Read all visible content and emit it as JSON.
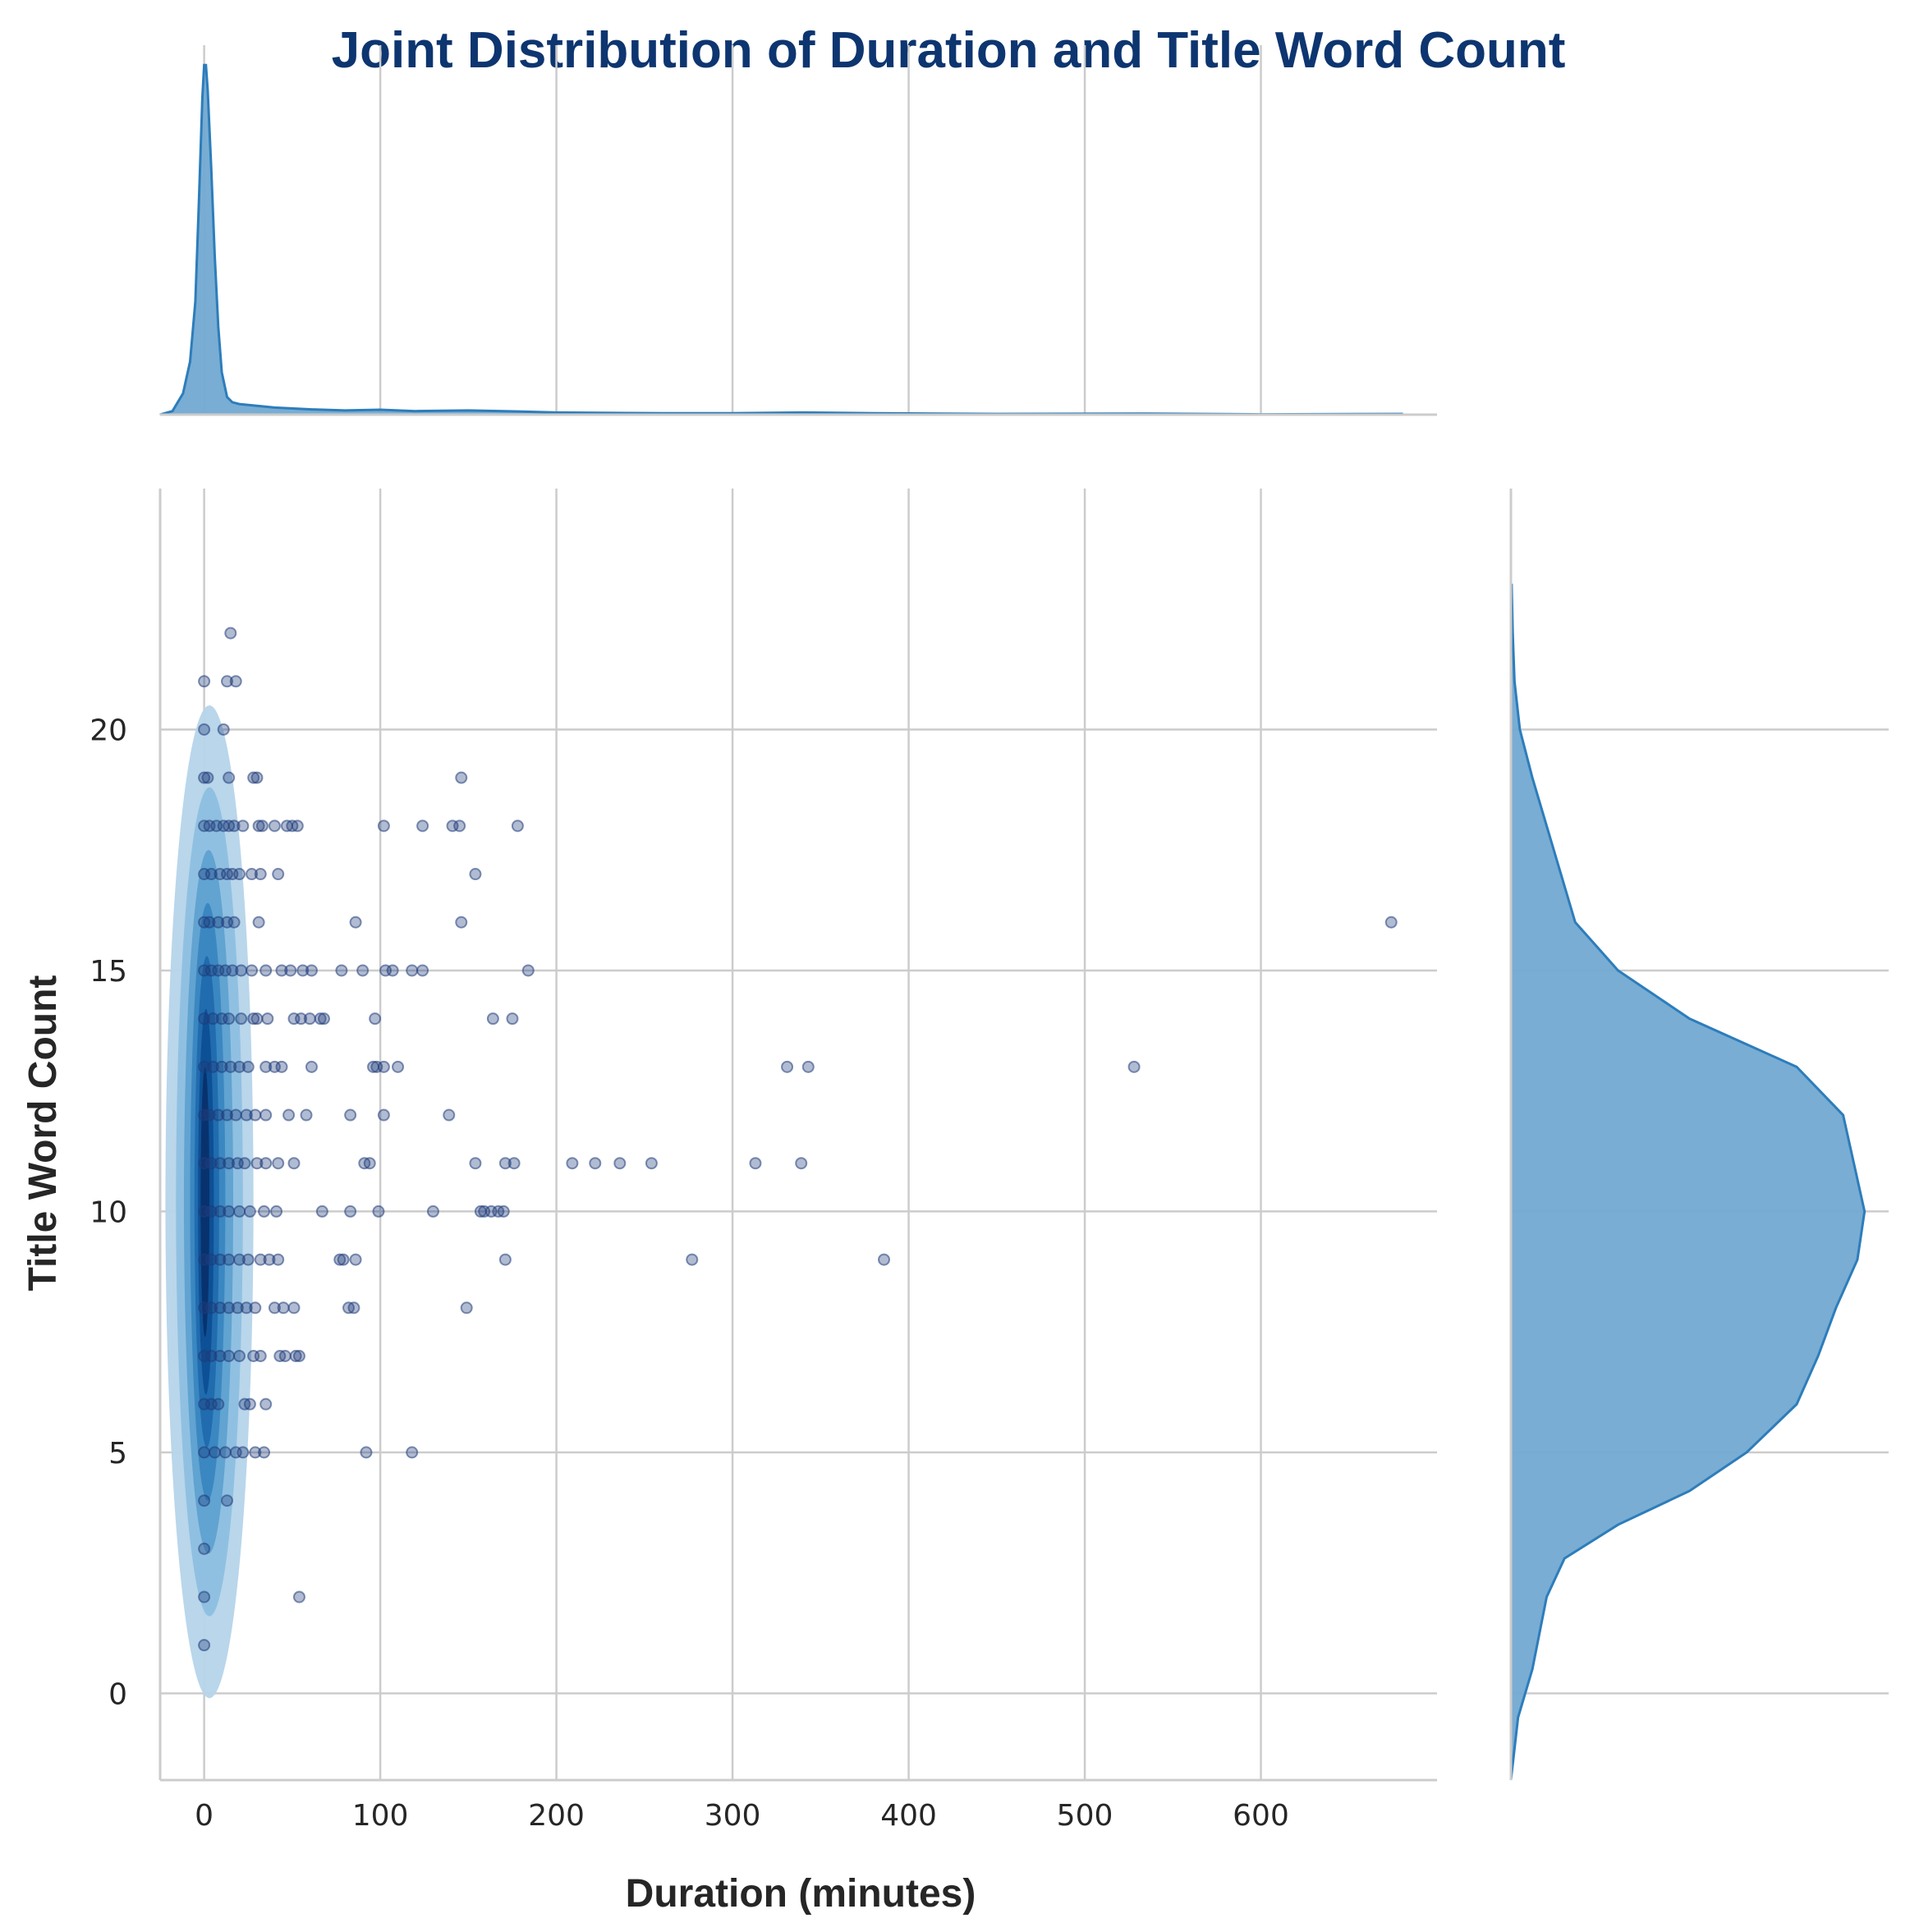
{
  "chart_data": {
    "type": "jointplot",
    "title": "Joint Distribution of Duration and Title Word Count",
    "xlabel": "Duration (minutes)",
    "ylabel": "Title Word Count",
    "xlim": [
      -25,
      700
    ],
    "ylim": [
      -1.8,
      25
    ],
    "xticks": [
      0,
      100,
      200,
      300,
      400,
      500,
      600
    ],
    "yticks": [
      0,
      5,
      10,
      15,
      20
    ],
    "grid": true,
    "colors": {
      "title": "#0d3570",
      "marginal_fill": "#72a9d1",
      "marginal_line": "#2d7dbb",
      "points": "#1f3d7a",
      "kde_levels": [
        "#b5d4ea",
        "#8dbfe0",
        "#5fa1d0",
        "#3986c0",
        "#1f6aad",
        "#0d4f93",
        "#08306b"
      ]
    },
    "scatter_points": [
      [
        15,
        22
      ],
      [
        0,
        21
      ],
      [
        13,
        21
      ],
      [
        18,
        21
      ],
      [
        0,
        20
      ],
      [
        11,
        20
      ],
      [
        0,
        19
      ],
      [
        2,
        19
      ],
      [
        14,
        19
      ],
      [
        28,
        19
      ],
      [
        30,
        19
      ],
      [
        146,
        19
      ],
      [
        0,
        18
      ],
      [
        3,
        18
      ],
      [
        7,
        18
      ],
      [
        11,
        18
      ],
      [
        14,
        18
      ],
      [
        17,
        18
      ],
      [
        22,
        18
      ],
      [
        31,
        18
      ],
      [
        33,
        18
      ],
      [
        40,
        18
      ],
      [
        47,
        18
      ],
      [
        50,
        18
      ],
      [
        53,
        18
      ],
      [
        102,
        18
      ],
      [
        124,
        18
      ],
      [
        141,
        18
      ],
      [
        145,
        18
      ],
      [
        178,
        18
      ],
      [
        0,
        17
      ],
      [
        4,
        17
      ],
      [
        9,
        17
      ],
      [
        13,
        17
      ],
      [
        16,
        17
      ],
      [
        20,
        17
      ],
      [
        27,
        17
      ],
      [
        32,
        17
      ],
      [
        42,
        17
      ],
      [
        154,
        17
      ],
      [
        0,
        16
      ],
      [
        3,
        16
      ],
      [
        8,
        16
      ],
      [
        13,
        16
      ],
      [
        17,
        16
      ],
      [
        31,
        16
      ],
      [
        86,
        16
      ],
      [
        146,
        16
      ],
      [
        674,
        16
      ],
      [
        0,
        15
      ],
      [
        4,
        15
      ],
      [
        8,
        15
      ],
      [
        12,
        15
      ],
      [
        16,
        15
      ],
      [
        21,
        15
      ],
      [
        27,
        15
      ],
      [
        35,
        15
      ],
      [
        44,
        15
      ],
      [
        49,
        15
      ],
      [
        56,
        15
      ],
      [
        61,
        15
      ],
      [
        78,
        15
      ],
      [
        90,
        15
      ],
      [
        103,
        15
      ],
      [
        107,
        15
      ],
      [
        118,
        15
      ],
      [
        124,
        15
      ],
      [
        184,
        15
      ],
      [
        0,
        14
      ],
      [
        5,
        14
      ],
      [
        10,
        14
      ],
      [
        14,
        14
      ],
      [
        21,
        14
      ],
      [
        28,
        14
      ],
      [
        30,
        14
      ],
      [
        36,
        14
      ],
      [
        51,
        14
      ],
      [
        55,
        14
      ],
      [
        60,
        14
      ],
      [
        66,
        14
      ],
      [
        68,
        14
      ],
      [
        97,
        14
      ],
      [
        164,
        14
      ],
      [
        175,
        14
      ],
      [
        0,
        13
      ],
      [
        5,
        13
      ],
      [
        10,
        13
      ],
      [
        15,
        13
      ],
      [
        20,
        13
      ],
      [
        25,
        13
      ],
      [
        35,
        13
      ],
      [
        40,
        13
      ],
      [
        44,
        13
      ],
      [
        61,
        13
      ],
      [
        96,
        13
      ],
      [
        98,
        13
      ],
      [
        102,
        13
      ],
      [
        110,
        13
      ],
      [
        331,
        13
      ],
      [
        343,
        13
      ],
      [
        528,
        13
      ],
      [
        0,
        12
      ],
      [
        3,
        12
      ],
      [
        8,
        12
      ],
      [
        13,
        12
      ],
      [
        18,
        12
      ],
      [
        24,
        12
      ],
      [
        29,
        12
      ],
      [
        35,
        12
      ],
      [
        48,
        12
      ],
      [
        58,
        12
      ],
      [
        83,
        12
      ],
      [
        102,
        12
      ],
      [
        139,
        12
      ],
      [
        0,
        11
      ],
      [
        4,
        11
      ],
      [
        9,
        11
      ],
      [
        14,
        11
      ],
      [
        19,
        11
      ],
      [
        23,
        11
      ],
      [
        30,
        11
      ],
      [
        35,
        11
      ],
      [
        42,
        11
      ],
      [
        51,
        11
      ],
      [
        91,
        11
      ],
      [
        94,
        11
      ],
      [
        154,
        11
      ],
      [
        171,
        11
      ],
      [
        176,
        11
      ],
      [
        209,
        11
      ],
      [
        222,
        11
      ],
      [
        236,
        11
      ],
      [
        254,
        11
      ],
      [
        313,
        11
      ],
      [
        339,
        11
      ],
      [
        0,
        10
      ],
      [
        4,
        10
      ],
      [
        9,
        10
      ],
      [
        14,
        10
      ],
      [
        20,
        10
      ],
      [
        26,
        10
      ],
      [
        34,
        10
      ],
      [
        41,
        10
      ],
      [
        67,
        10
      ],
      [
        83,
        10
      ],
      [
        99,
        10
      ],
      [
        130,
        10
      ],
      [
        157,
        10
      ],
      [
        159,
        10
      ],
      [
        163,
        10
      ],
      [
        167,
        10
      ],
      [
        170,
        10
      ],
      [
        0,
        9
      ],
      [
        4,
        9
      ],
      [
        9,
        9
      ],
      [
        14,
        9
      ],
      [
        20,
        9
      ],
      [
        25,
        9
      ],
      [
        32,
        9
      ],
      [
        37,
        9
      ],
      [
        42,
        9
      ],
      [
        77,
        9
      ],
      [
        79,
        9
      ],
      [
        86,
        9
      ],
      [
        171,
        9
      ],
      [
        277,
        9
      ],
      [
        386,
        9
      ],
      [
        0,
        8
      ],
      [
        4,
        8
      ],
      [
        9,
        8
      ],
      [
        14,
        8
      ],
      [
        19,
        8
      ],
      [
        24,
        8
      ],
      [
        29,
        8
      ],
      [
        40,
        8
      ],
      [
        45,
        8
      ],
      [
        51,
        8
      ],
      [
        82,
        8
      ],
      [
        85,
        8
      ],
      [
        149,
        8
      ],
      [
        0,
        7
      ],
      [
        4,
        7
      ],
      [
        9,
        7
      ],
      [
        14,
        7
      ],
      [
        20,
        7
      ],
      [
        28,
        7
      ],
      [
        32,
        7
      ],
      [
        43,
        7
      ],
      [
        46,
        7
      ],
      [
        52,
        7
      ],
      [
        54,
        7
      ],
      [
        0,
        6
      ],
      [
        4,
        6
      ],
      [
        8,
        6
      ],
      [
        23,
        6
      ],
      [
        26,
        6
      ],
      [
        35,
        6
      ],
      [
        0,
        5
      ],
      [
        6,
        5
      ],
      [
        12,
        5
      ],
      [
        18,
        5
      ],
      [
        22,
        5
      ],
      [
        29,
        5
      ],
      [
        34,
        5
      ],
      [
        92,
        5
      ],
      [
        118,
        5
      ],
      [
        0,
        4
      ],
      [
        13,
        4
      ],
      [
        0,
        3
      ],
      [
        0,
        2
      ],
      [
        54,
        2
      ],
      [
        0,
        1
      ]
    ],
    "kde_contours": [
      {
        "level": 1,
        "cx": 3,
        "cy": 10.2,
        "sx": 25,
        "sy": 10.3
      },
      {
        "level": 2,
        "cx": 3,
        "cy": 10.2,
        "sx": 19,
        "sy": 8.6
      },
      {
        "level": 3,
        "cx": 2.5,
        "cy": 10.2,
        "sx": 14,
        "sy": 7.3
      },
      {
        "level": 4,
        "cx": 2,
        "cy": 10.2,
        "sx": 10,
        "sy": 6.2
      },
      {
        "level": 5,
        "cx": 1.5,
        "cy": 10.2,
        "sx": 7,
        "sy": 5.1
      },
      {
        "level": 6,
        "cx": 1,
        "cy": 10.2,
        "sx": 4.5,
        "sy": 4.0
      },
      {
        "level": 7,
        "cx": 0.5,
        "cy": 10.2,
        "sx": 2.5,
        "sy": 2.8
      }
    ],
    "marginal_x_density": [
      [
        -25,
        0
      ],
      [
        -18,
        0.01
      ],
      [
        -12,
        0.06
      ],
      [
        -8,
        0.15
      ],
      [
        -5,
        0.32
      ],
      [
        -3,
        0.6
      ],
      [
        -1,
        0.9
      ],
      [
        0,
        0.99
      ],
      [
        1,
        0.99
      ],
      [
        2,
        0.92
      ],
      [
        4,
        0.7
      ],
      [
        6,
        0.45
      ],
      [
        8,
        0.25
      ],
      [
        10,
        0.12
      ],
      [
        13,
        0.05
      ],
      [
        16,
        0.035
      ],
      [
        20,
        0.03
      ],
      [
        30,
        0.025
      ],
      [
        40,
        0.02
      ],
      [
        60,
        0.015
      ],
      [
        80,
        0.012
      ],
      [
        100,
        0.014
      ],
      [
        120,
        0.01
      ],
      [
        150,
        0.012
      ],
      [
        170,
        0.01
      ],
      [
        200,
        0.006
      ],
      [
        260,
        0.004
      ],
      [
        300,
        0.004
      ],
      [
        340,
        0.006
      ],
      [
        380,
        0.004
      ],
      [
        450,
        0.002
      ],
      [
        530,
        0.003
      ],
      [
        600,
        0.001
      ],
      [
        680,
        0.002
      ]
    ],
    "marginal_y_density": [
      [
        -1.8,
        0
      ],
      [
        -0.5,
        0.02
      ],
      [
        0.5,
        0.06
      ],
      [
        2,
        0.1
      ],
      [
        2.8,
        0.15
      ],
      [
        3.5,
        0.3
      ],
      [
        4.2,
        0.5
      ],
      [
        5,
        0.66
      ],
      [
        6,
        0.8
      ],
      [
        7,
        0.86
      ],
      [
        8,
        0.91
      ],
      [
        9,
        0.97
      ],
      [
        10,
        0.99
      ],
      [
        11,
        0.96
      ],
      [
        12,
        0.93
      ],
      [
        13,
        0.8
      ],
      [
        14,
        0.5
      ],
      [
        15,
        0.3
      ],
      [
        16,
        0.18
      ],
      [
        17,
        0.14
      ],
      [
        18,
        0.1
      ],
      [
        19,
        0.06
      ],
      [
        20,
        0.025
      ],
      [
        21,
        0.01
      ],
      [
        22,
        0.005
      ],
      [
        23,
        0.002
      ]
    ]
  }
}
